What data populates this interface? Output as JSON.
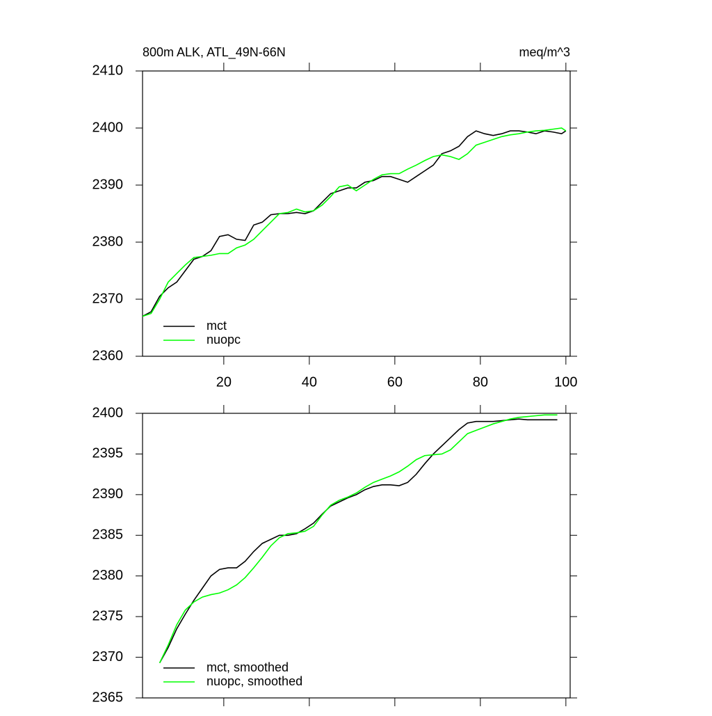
{
  "chart_data": [
    {
      "type": "line",
      "title": "800m ALK, ATL_49N-66N",
      "units": "meq/m^3",
      "x": [
        1,
        3,
        5,
        7,
        9,
        11,
        13,
        15,
        17,
        19,
        21,
        23,
        25,
        27,
        29,
        31,
        33,
        35,
        37,
        39,
        41,
        43,
        45,
        47,
        49,
        51,
        53,
        55,
        57,
        59,
        61,
        63,
        65,
        67,
        69,
        71,
        73,
        75,
        77,
        79,
        81,
        83,
        85,
        87,
        89,
        91,
        93,
        95,
        97,
        99,
        100
      ],
      "series": [
        {
          "name": "mct",
          "color": "#000000",
          "values": [
            2367,
            2367.8,
            2370.5,
            2372,
            2373,
            2375,
            2377,
            2377.5,
            2378.5,
            2381,
            2381.3,
            2380.5,
            2380.3,
            2383,
            2383.5,
            2384.8,
            2385,
            2385,
            2385.2,
            2385,
            2385.5,
            2387,
            2388.5,
            2389,
            2389.5,
            2389.5,
            2390.5,
            2390.8,
            2391.5,
            2391.5,
            2391,
            2390.5,
            2391.5,
            2392.5,
            2393.5,
            2395.5,
            2396,
            2396.8,
            2398.5,
            2399.5,
            2399,
            2398.7,
            2399,
            2399.5,
            2399.5,
            2399.3,
            2399,
            2399.5,
            2399.3,
            2399,
            2399.5
          ]
        },
        {
          "name": "nuopc",
          "color": "#00ff00",
          "values": [
            2367,
            2367.5,
            2370,
            2373,
            2374.5,
            2376,
            2377.3,
            2377.5,
            2377.7,
            2378,
            2378,
            2379,
            2379.5,
            2380.5,
            2382,
            2383.5,
            2385,
            2385.2,
            2385.8,
            2385.3,
            2385.5,
            2386.5,
            2388,
            2389.7,
            2390,
            2389,
            2390,
            2391,
            2391.8,
            2392,
            2392,
            2392.8,
            2393.5,
            2394.3,
            2395,
            2395.3,
            2395,
            2394.5,
            2395.5,
            2397,
            2397.5,
            2398,
            2398.5,
            2398.8,
            2399,
            2399.3,
            2399.5,
            2399.6,
            2399.8,
            2400,
            2399.5
          ]
        }
      ],
      "xlim": [
        1,
        101
      ],
      "xticks": [
        20,
        40,
        60,
        80,
        100
      ],
      "show_xtick_labels": true,
      "ylim": [
        2360,
        2410
      ],
      "yticks": [
        2360,
        2370,
        2380,
        2390,
        2400,
        2410
      ]
    },
    {
      "type": "line",
      "x": [
        5,
        7,
        9,
        11,
        13,
        15,
        17,
        19,
        21,
        23,
        25,
        27,
        29,
        31,
        33,
        35,
        37,
        39,
        41,
        43,
        45,
        47,
        49,
        51,
        53,
        55,
        57,
        59,
        61,
        63,
        65,
        67,
        69,
        71,
        73,
        75,
        77,
        79,
        81,
        83,
        85,
        87,
        89,
        91,
        93,
        95,
        98
      ],
      "series": [
        {
          "name": "mct, smoothed",
          "color": "#000000",
          "values": [
            2369.3,
            2371.2,
            2373.5,
            2375.3,
            2377,
            2378.5,
            2380,
            2380.8,
            2381,
            2381,
            2381.8,
            2383,
            2384,
            2384.5,
            2385,
            2385,
            2385.2,
            2385.8,
            2386.5,
            2387.6,
            2388.6,
            2389.1,
            2389.6,
            2390,
            2390.6,
            2391,
            2391.2,
            2391.2,
            2391.1,
            2391.5,
            2392.5,
            2393.8,
            2395,
            2396,
            2397,
            2398,
            2398.8,
            2399,
            2399,
            2399,
            2399.1,
            2399.2,
            2399.3,
            2399.2,
            2399.2,
            2399.2,
            2399.2
          ]
        },
        {
          "name": "nuopc, smoothed",
          "color": "#00ff00",
          "values": [
            2369.3,
            2371.5,
            2374,
            2375.8,
            2376.8,
            2377.4,
            2377.7,
            2377.9,
            2378.3,
            2378.9,
            2379.8,
            2381,
            2382.3,
            2383.7,
            2384.7,
            2385.2,
            2385.3,
            2385.5,
            2386.1,
            2387.5,
            2388.7,
            2389.3,
            2389.7,
            2390.2,
            2390.9,
            2391.5,
            2391.9,
            2392.3,
            2392.8,
            2393.5,
            2394.3,
            2394.8,
            2394.9,
            2395,
            2395.5,
            2396.5,
            2397.5,
            2397.9,
            2398.3,
            2398.7,
            2399,
            2399.3,
            2399.5,
            2399.6,
            2399.7,
            2399.8,
            2399.8
          ]
        }
      ],
      "xlim": [
        1,
        101
      ],
      "xticks": [
        20,
        40,
        60,
        80,
        100
      ],
      "show_xtick_labels": false,
      "ylim": [
        2365,
        2400
      ],
      "yticks": [
        2365,
        2370,
        2375,
        2380,
        2385,
        2390,
        2395,
        2400
      ]
    }
  ]
}
